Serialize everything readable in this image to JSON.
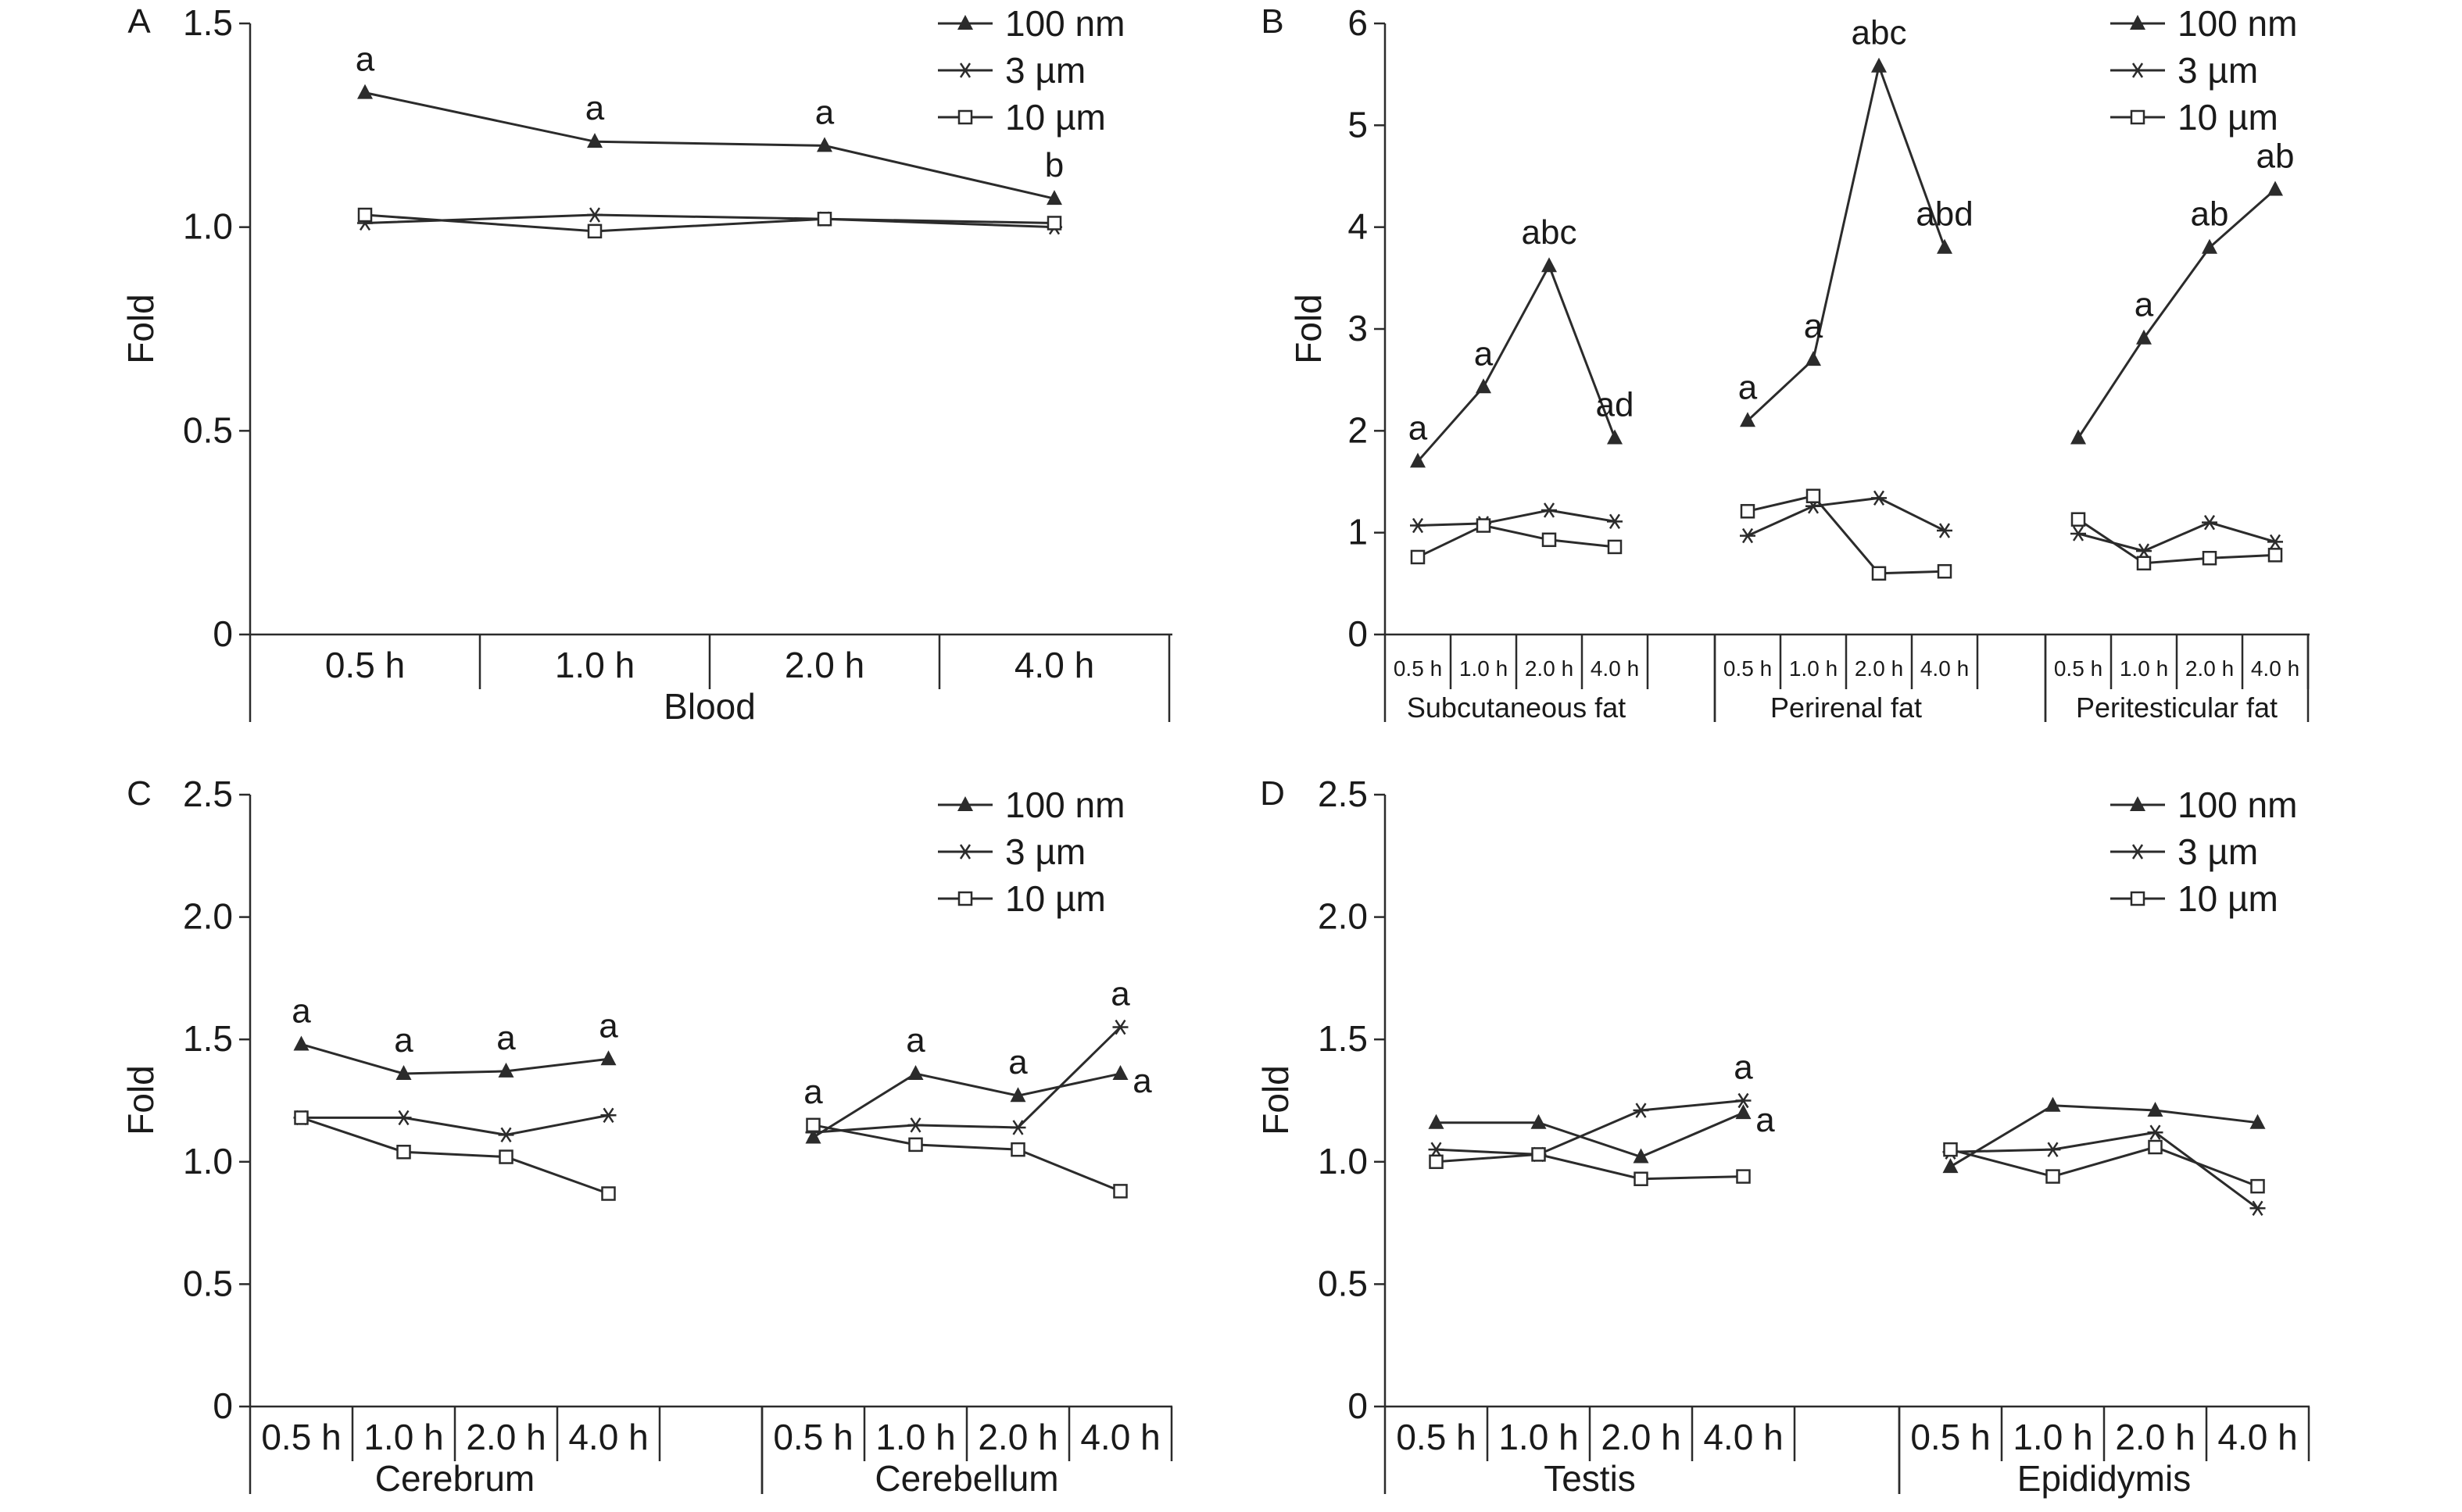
{
  "legend": {
    "series": [
      {
        "name": "100 nm",
        "marker": "triangle"
      },
      {
        "name": "3 µm",
        "marker": "star"
      },
      {
        "name": "10 µm",
        "marker": "square"
      }
    ]
  },
  "colors": {
    "line": "#2b2b2b",
    "text": "#1a1a1a"
  },
  "chart_data": [
    {
      "panel": "A",
      "type": "line",
      "ylabel": "Fold",
      "ylim": [
        0,
        1.5
      ],
      "yticks": [
        "0",
        "0.5",
        "1.0",
        "1.5"
      ],
      "ytick_values": [
        0,
        0.5,
        1.0,
        1.5
      ],
      "groups": [
        {
          "label": "Blood",
          "categories": [
            "0.5 h",
            "1.0 h",
            "2.0 h",
            "4.0 h"
          ],
          "series": [
            {
              "name": "100 nm",
              "values": [
                1.33,
                1.21,
                1.2,
                1.07
              ]
            },
            {
              "name": "3 µm",
              "values": [
                1.01,
                1.03,
                1.02,
                1.0
              ]
            },
            {
              "name": "10 µm",
              "values": [
                1.03,
                0.99,
                1.02,
                1.01
              ]
            }
          ],
          "annotations": [
            "a",
            "a",
            "a",
            "b"
          ]
        }
      ]
    },
    {
      "panel": "B",
      "type": "line",
      "ylabel": "Fold",
      "ylim": [
        0,
        6
      ],
      "yticks": [
        "0",
        "1",
        "2",
        "3",
        "4",
        "5",
        "6"
      ],
      "ytick_values": [
        0,
        1,
        2,
        3,
        4,
        5,
        6
      ],
      "groups": [
        {
          "label": "Subcutaneous fat",
          "categories": [
            "0.5 h",
            "1.0 h",
            "2.0 h",
            "4.0 h"
          ],
          "series": [
            {
              "name": "100 nm",
              "values": [
                1.7,
                2.43,
                3.62,
                1.93
              ]
            },
            {
              "name": "3 µm",
              "values": [
                1.07,
                1.09,
                1.22,
                1.11
              ]
            },
            {
              "name": "10 µm",
              "values": [
                0.76,
                1.07,
                0.93,
                0.86
              ]
            }
          ],
          "annotations": [
            "a",
            "a",
            "abc",
            "ad"
          ]
        },
        {
          "label": "Perirenal fat",
          "categories": [
            "0.5 h",
            "1.0 h",
            "2.0 h",
            "4.0 h"
          ],
          "series": [
            {
              "name": "100 nm",
              "values": [
                2.1,
                2.7,
                5.58,
                3.8
              ]
            },
            {
              "name": "3 µm",
              "values": [
                0.97,
                1.26,
                1.34,
                1.02
              ]
            },
            {
              "name": "10 µm",
              "values": [
                1.21,
                1.36,
                0.6,
                0.62
              ]
            }
          ],
          "annotations": [
            "a",
            "a",
            "abc",
            "abd"
          ]
        },
        {
          "label": "Peritesticular fat",
          "categories": [
            "0.5 h",
            "1.0 h",
            "2.0 h",
            "4.0 h"
          ],
          "series": [
            {
              "name": "100 nm",
              "values": [
                1.93,
                2.91,
                3.8,
                4.37
              ]
            },
            {
              "name": "3 µm",
              "values": [
                0.99,
                0.82,
                1.1,
                0.91
              ]
            },
            {
              "name": "10 µm",
              "values": [
                1.13,
                0.7,
                0.75,
                0.78
              ]
            }
          ],
          "annotations": [
            "",
            "a",
            "ab",
            "ab"
          ]
        }
      ]
    },
    {
      "panel": "C",
      "type": "line",
      "ylabel": "Fold",
      "ylim": [
        0,
        2.5
      ],
      "yticks": [
        "0",
        "0.5",
        "1.0",
        "1.5",
        "2.0",
        "2.5"
      ],
      "ytick_values": [
        0,
        0.5,
        1.0,
        1.5,
        2.0,
        2.5
      ],
      "groups": [
        {
          "label": "Cerebrum",
          "categories": [
            "0.5 h",
            "1.0 h",
            "2.0 h",
            "4.0 h"
          ],
          "series": [
            {
              "name": "100 nm",
              "values": [
                1.48,
                1.36,
                1.37,
                1.42
              ]
            },
            {
              "name": "3 µm",
              "values": [
                1.18,
                1.18,
                1.11,
                1.19
              ]
            },
            {
              "name": "10 µm",
              "values": [
                1.18,
                1.04,
                1.02,
                0.87
              ]
            }
          ],
          "annotations": [
            "a",
            "a",
            "a",
            "a"
          ]
        },
        {
          "label": "Cerebellum",
          "categories": [
            "0.5 h",
            "1.0 h",
            "2.0 h",
            "4.0 h"
          ],
          "series": [
            {
              "name": "100 nm",
              "values": [
                1.1,
                1.36,
                1.27,
                1.36
              ]
            },
            {
              "name": "3 µm",
              "values": [
                1.12,
                1.15,
                1.14,
                1.55
              ]
            },
            {
              "name": "10 µm",
              "values": [
                1.15,
                1.07,
                1.05,
                0.88
              ]
            }
          ],
          "annotations": [
            "a",
            "a",
            "a",
            "a"
          ],
          "annotations2": [
            "",
            "",
            "",
            "a"
          ]
        }
      ]
    },
    {
      "panel": "D",
      "type": "line",
      "ylabel": "Fold",
      "ylim": [
        0,
        2.5
      ],
      "yticks": [
        "0",
        "0.5",
        "1.0",
        "1.5",
        "2.0",
        "2.5"
      ],
      "ytick_values": [
        0,
        0.5,
        1.0,
        1.5,
        2.0,
        2.5
      ],
      "groups": [
        {
          "label": "Testis",
          "categories": [
            "0.5 h",
            "1.0 h",
            "2.0 h",
            "4.0 h"
          ],
          "series": [
            {
              "name": "100 nm",
              "values": [
                1.16,
                1.16,
                1.02,
                1.2
              ]
            },
            {
              "name": "3 µm",
              "values": [
                1.05,
                1.03,
                1.21,
                1.25
              ]
            },
            {
              "name": "10 µm",
              "values": [
                1.0,
                1.03,
                0.93,
                0.94
              ]
            }
          ],
          "annotations": [
            "",
            "",
            "",
            "a"
          ],
          "annotations2": [
            "",
            "",
            "",
            "a"
          ]
        },
        {
          "label": "Epididymis",
          "categories": [
            "0.5 h",
            "1.0 h",
            "2.0 h",
            "4.0 h"
          ],
          "series": [
            {
              "name": "100 nm",
              "values": [
                0.98,
                1.23,
                1.21,
                1.16
              ]
            },
            {
              "name": "3 µm",
              "values": [
                1.04,
                1.05,
                1.12,
                0.81
              ]
            },
            {
              "name": "10 µm",
              "values": [
                1.05,
                0.94,
                1.06,
                0.9
              ]
            }
          ],
          "annotations": [
            "",
            "",
            "",
            ""
          ]
        }
      ]
    }
  ]
}
